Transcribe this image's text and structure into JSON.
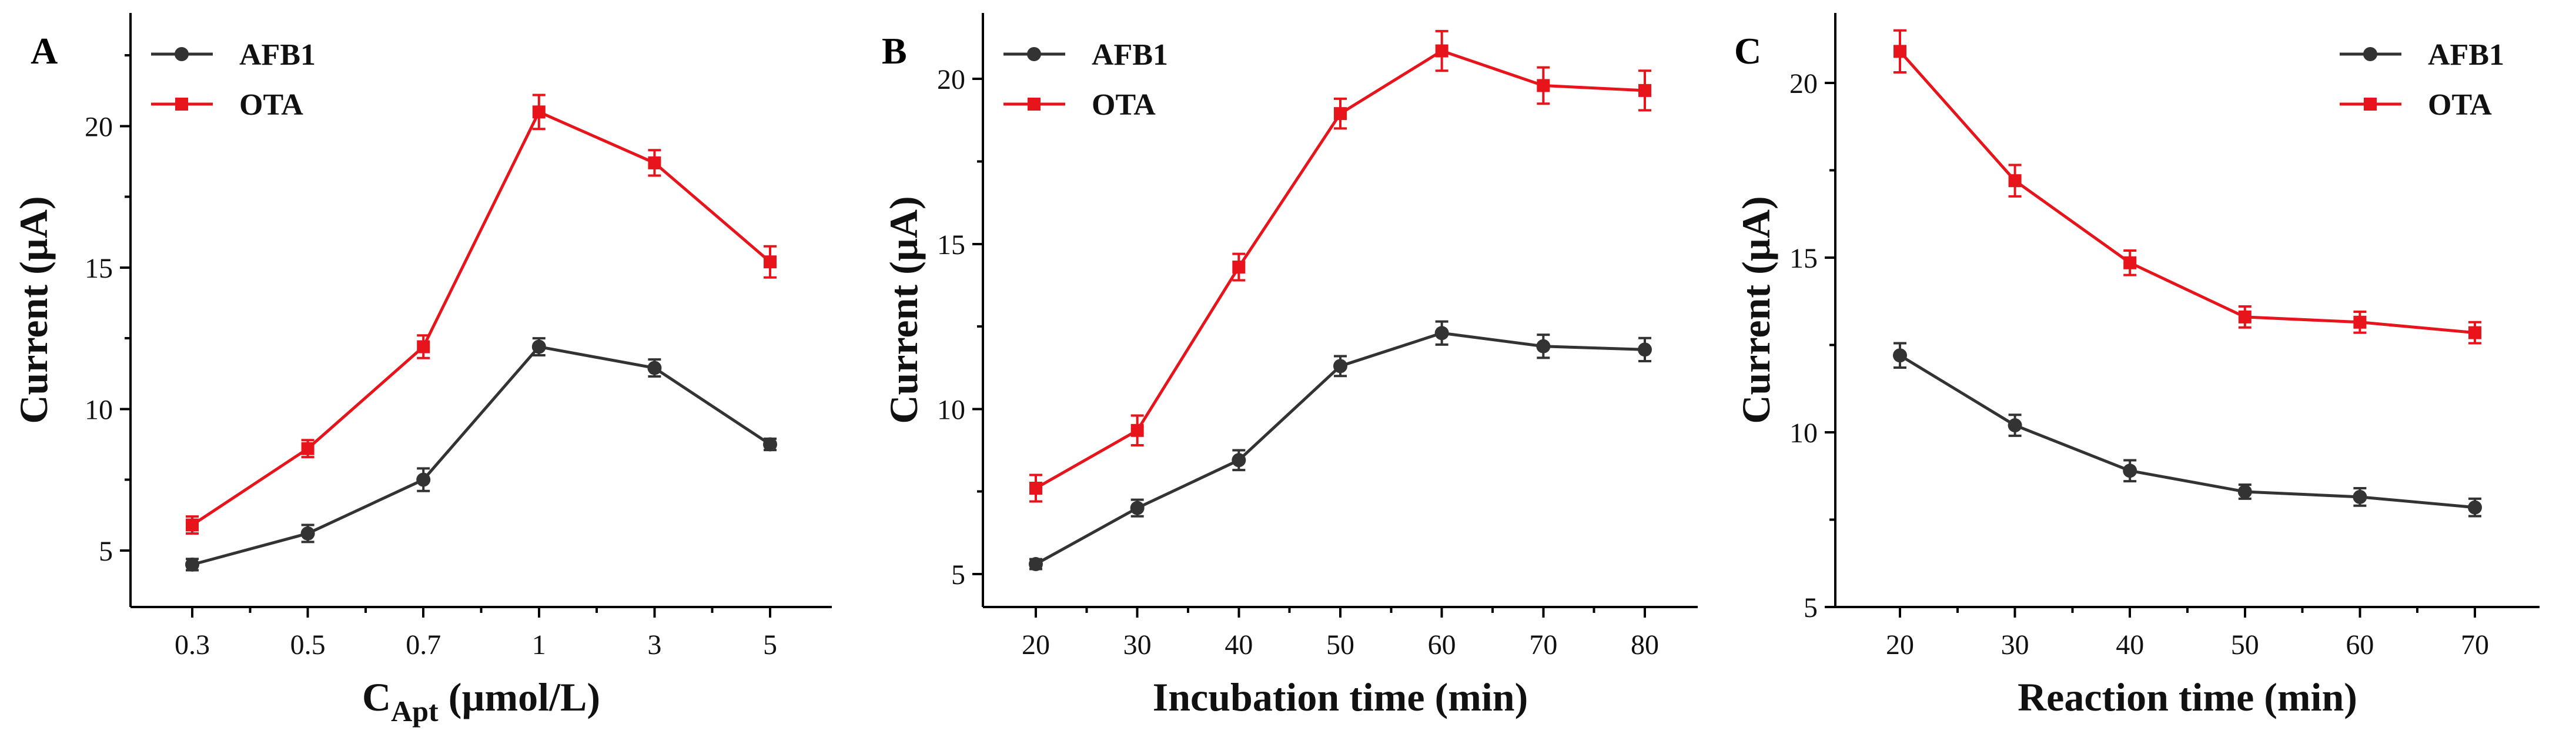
{
  "chart_data": [
    {
      "panel": "A",
      "type": "line",
      "categories": [
        "0.3",
        "0.5",
        "0.7",
        "1",
        "3",
        "5"
      ],
      "xlabel": "C",
      "xlabel_sub": "Apt",
      "xlabel_unit": " (µmol/L)",
      "ylabel": "Current (µA)",
      "ylim": [
        3,
        24
      ],
      "yticks": [
        5,
        10,
        15,
        20
      ],
      "legend_position": "top-left",
      "series": [
        {
          "name": "AFB1",
          "color": "#333333",
          "marker": "circle",
          "values": [
            4.5,
            5.6,
            7.5,
            12.2,
            11.45,
            8.75
          ],
          "errors": [
            0.2,
            0.3,
            0.4,
            0.3,
            0.3,
            0.2
          ]
        },
        {
          "name": "OTA",
          "color": "#e8141b",
          "marker": "square",
          "values": [
            5.9,
            8.6,
            12.2,
            20.5,
            18.7,
            15.2
          ],
          "errors": [
            0.3,
            0.3,
            0.4,
            0.6,
            0.45,
            0.55
          ]
        }
      ]
    },
    {
      "panel": "B",
      "type": "line",
      "categories": [
        "20",
        "30",
        "40",
        "50",
        "60",
        "70",
        "80"
      ],
      "xlabel": "Incubation time (min)",
      "ylabel": "Current (µA)",
      "ylim": [
        4,
        22
      ],
      "yticks": [
        5,
        10,
        15,
        20
      ],
      "legend_position": "top-left",
      "series": [
        {
          "name": "AFB1",
          "color": "#333333",
          "marker": "circle",
          "values": [
            5.3,
            7.0,
            8.45,
            11.3,
            12.3,
            11.9,
            11.8
          ],
          "errors": [
            0.15,
            0.25,
            0.3,
            0.3,
            0.35,
            0.35,
            0.35
          ]
        },
        {
          "name": "OTA",
          "color": "#e8141b",
          "marker": "square",
          "values": [
            7.6,
            9.35,
            14.3,
            18.95,
            20.85,
            19.8,
            19.65
          ],
          "errors": [
            0.4,
            0.45,
            0.4,
            0.45,
            0.6,
            0.55,
            0.6
          ]
        }
      ]
    },
    {
      "panel": "C",
      "type": "line",
      "categories": [
        "20",
        "30",
        "40",
        "50",
        "60",
        "70"
      ],
      "xlabel": "Reaction time (min)",
      "ylabel": "Current (µA)",
      "ylim": [
        5,
        22
      ],
      "yticks": [
        5,
        10,
        15,
        20
      ],
      "legend_position": "top-right",
      "series": [
        {
          "name": "AFB1",
          "color": "#333333",
          "marker": "circle",
          "values": [
            12.2,
            10.2,
            8.9,
            8.3,
            8.15,
            7.85
          ],
          "errors": [
            0.35,
            0.3,
            0.3,
            0.2,
            0.25,
            0.25
          ]
        },
        {
          "name": "OTA",
          "color": "#e8141b",
          "marker": "square",
          "values": [
            20.9,
            17.2,
            14.85,
            13.3,
            13.15,
            12.85
          ],
          "errors": [
            0.6,
            0.45,
            0.35,
            0.3,
            0.3,
            0.3
          ]
        }
      ]
    }
  ]
}
